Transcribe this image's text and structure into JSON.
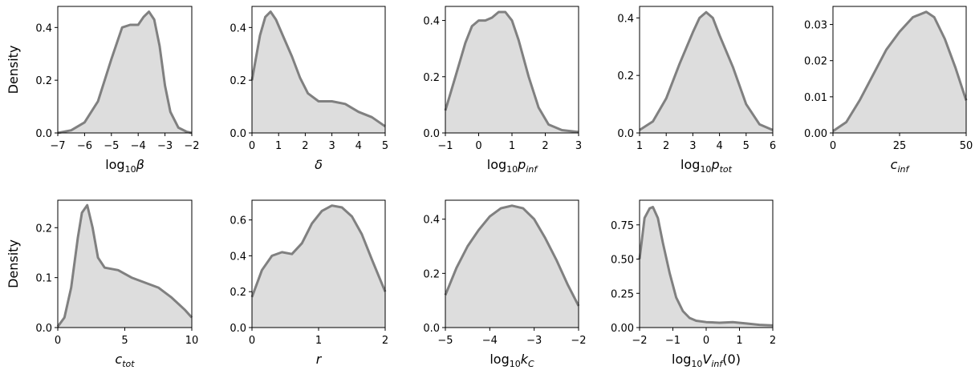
{
  "colors": {
    "fill": "#dddddd",
    "line": "#808080",
    "frame": "#000000"
  },
  "ylabel": "Density",
  "chart_data": [
    {
      "type": "area",
      "xlabel": {
        "base": "log",
        "sub": "10",
        "sym": "β",
        "ssub": ""
      },
      "xlim": [
        -7,
        -2
      ],
      "ylim": [
        0,
        0.48
      ],
      "xticks": [
        -7,
        -6,
        -5,
        -4,
        -3,
        -2
      ],
      "yticks": [
        0.0,
        0.2,
        0.4
      ],
      "xtick_labels": [
        "−7",
        "−6",
        "−5",
        "−4",
        "−3",
        "−2"
      ],
      "ytick_labels": [
        "0.0",
        "0.2",
        "0.4"
      ],
      "x": [
        -7,
        -6.5,
        -6,
        -5.5,
        -5,
        -4.6,
        -4.3,
        -4,
        -3.8,
        -3.6,
        -3.4,
        -3.2,
        -3,
        -2.8,
        -2.5,
        -2.2,
        -2
      ],
      "y": [
        0,
        0.01,
        0.04,
        0.12,
        0.28,
        0.4,
        0.41,
        0.41,
        0.44,
        0.46,
        0.43,
        0.33,
        0.18,
        0.08,
        0.02,
        0.005,
        0
      ]
    },
    {
      "type": "area",
      "xlabel": {
        "base": "",
        "sub": "",
        "sym": "δ",
        "ssub": ""
      },
      "xlim": [
        0,
        5
      ],
      "ylim": [
        0,
        0.48
      ],
      "xticks": [
        0,
        1,
        2,
        3,
        4,
        5
      ],
      "yticks": [
        0.0,
        0.2,
        0.4
      ],
      "xtick_labels": [
        "0",
        "1",
        "2",
        "3",
        "4",
        "5"
      ],
      "ytick_labels": [
        "0.0",
        "0.2",
        "0.4"
      ],
      "x": [
        0,
        0.3,
        0.5,
        0.7,
        0.9,
        1.2,
        1.5,
        1.8,
        2.1,
        2.5,
        3,
        3.5,
        4,
        4.5,
        5
      ],
      "y": [
        0.2,
        0.37,
        0.44,
        0.46,
        0.43,
        0.36,
        0.29,
        0.21,
        0.15,
        0.12,
        0.12,
        0.11,
        0.08,
        0.06,
        0.025
      ]
    },
    {
      "type": "area",
      "xlabel": {
        "base": "log",
        "sub": "10",
        "sym": "p",
        "ssub": "inf"
      },
      "xlim": [
        -1,
        3
      ],
      "ylim": [
        0,
        0.45
      ],
      "xticks": [
        -1,
        0,
        1,
        2,
        3
      ],
      "yticks": [
        0.0,
        0.2,
        0.4
      ],
      "xtick_labels": [
        "−1",
        "0",
        "1",
        "2",
        "3"
      ],
      "ytick_labels": [
        "0.0",
        "0.2",
        "0.4"
      ],
      "x": [
        -1,
        -0.7,
        -0.4,
        -0.2,
        0,
        0.2,
        0.4,
        0.6,
        0.8,
        1,
        1.2,
        1.5,
        1.8,
        2.1,
        2.5,
        3
      ],
      "y": [
        0.08,
        0.2,
        0.32,
        0.38,
        0.4,
        0.4,
        0.41,
        0.43,
        0.43,
        0.4,
        0.33,
        0.2,
        0.09,
        0.03,
        0.01,
        0.003
      ]
    },
    {
      "type": "area",
      "xlabel": {
        "base": "log",
        "sub": "10",
        "sym": "p",
        "ssub": "tot"
      },
      "xlim": [
        1,
        6
      ],
      "ylim": [
        0,
        0.44
      ],
      "xticks": [
        1,
        2,
        3,
        4,
        5,
        6
      ],
      "yticks": [
        0.0,
        0.2,
        0.4
      ],
      "xtick_labels": [
        "1",
        "2",
        "3",
        "4",
        "5",
        "6"
      ],
      "ytick_labels": [
        "0.0",
        "0.2",
        "0.4"
      ],
      "x": [
        1,
        1.5,
        2,
        2.5,
        3,
        3.25,
        3.5,
        3.75,
        4,
        4.5,
        5,
        5.5,
        6
      ],
      "y": [
        0.01,
        0.04,
        0.12,
        0.24,
        0.35,
        0.4,
        0.42,
        0.4,
        0.34,
        0.23,
        0.1,
        0.03,
        0.01
      ]
    },
    {
      "type": "area",
      "xlabel": {
        "base": "",
        "sub": "",
        "sym": "c",
        "ssub": "inf"
      },
      "xlim": [
        0,
        50
      ],
      "ylim": [
        0,
        0.035
      ],
      "xticks": [
        0,
        25,
        50
      ],
      "yticks": [
        0.0,
        0.01,
        0.02,
        0.03
      ],
      "xtick_labels": [
        "0",
        "25",
        "50"
      ],
      "ytick_labels": [
        "0.00",
        "0.01",
        "0.02",
        "0.03"
      ],
      "x": [
        0,
        5,
        10,
        15,
        20,
        25,
        30,
        35,
        38,
        42,
        46,
        50
      ],
      "y": [
        0.0005,
        0.003,
        0.009,
        0.016,
        0.023,
        0.028,
        0.032,
        0.0335,
        0.032,
        0.026,
        0.018,
        0.009
      ]
    },
    {
      "type": "area",
      "xlabel": {
        "base": "",
        "sub": "",
        "sym": "c",
        "ssub": "tot"
      },
      "xlim": [
        0,
        10
      ],
      "ylim": [
        0,
        0.255
      ],
      "xticks": [
        0,
        5,
        10
      ],
      "yticks": [
        0.0,
        0.1,
        0.2
      ],
      "xtick_labels": [
        "0",
        "5",
        "10"
      ],
      "ytick_labels": [
        "0.0",
        "0.1",
        "0.2"
      ],
      "x": [
        0,
        0.5,
        1,
        1.5,
        1.8,
        2.2,
        2.6,
        3,
        3.5,
        4.5,
        5.5,
        6.5,
        7.5,
        8.5,
        9.5,
        10
      ],
      "y": [
        0.002,
        0.02,
        0.08,
        0.18,
        0.23,
        0.245,
        0.2,
        0.14,
        0.12,
        0.115,
        0.1,
        0.09,
        0.08,
        0.06,
        0.035,
        0.02
      ]
    },
    {
      "type": "area",
      "xlabel": {
        "base": "",
        "sub": "",
        "sym": "r",
        "ssub": ""
      },
      "xlim": [
        0,
        2
      ],
      "ylim": [
        0,
        0.71
      ],
      "xticks": [
        0,
        1,
        2
      ],
      "yticks": [
        0.0,
        0.2,
        0.4,
        0.6
      ],
      "xtick_labels": [
        "0",
        "1",
        "2"
      ],
      "ytick_labels": [
        "0.0",
        "0.2",
        "0.4",
        "0.6"
      ],
      "x": [
        0,
        0.15,
        0.3,
        0.45,
        0.6,
        0.75,
        0.9,
        1.05,
        1.2,
        1.35,
        1.5,
        1.65,
        1.8,
        2
      ],
      "y": [
        0.17,
        0.32,
        0.4,
        0.42,
        0.41,
        0.47,
        0.58,
        0.65,
        0.68,
        0.67,
        0.62,
        0.52,
        0.38,
        0.2
      ]
    },
    {
      "type": "area",
      "xlabel": {
        "base": "log",
        "sub": "10",
        "sym": "k",
        "ssub": "C"
      },
      "xlim": [
        -5,
        -2
      ],
      "ylim": [
        0,
        0.47
      ],
      "xticks": [
        -5,
        -4,
        -3,
        -2
      ],
      "yticks": [
        0.0,
        0.2,
        0.4
      ],
      "xtick_labels": [
        "−5",
        "−4",
        "−3",
        "−2"
      ],
      "ytick_labels": [
        "0.0",
        "0.2",
        "0.4"
      ],
      "x": [
        -5,
        -4.75,
        -4.5,
        -4.25,
        -4,
        -3.75,
        -3.5,
        -3.25,
        -3,
        -2.75,
        -2.5,
        -2.25,
        -2
      ],
      "y": [
        0.12,
        0.22,
        0.3,
        0.36,
        0.41,
        0.44,
        0.45,
        0.44,
        0.4,
        0.33,
        0.25,
        0.16,
        0.08
      ]
    },
    {
      "type": "area",
      "xlabel": {
        "base": "log",
        "sub": "10",
        "sym": "V",
        "ssub": "inf",
        "tail": "(0)"
      },
      "xlim": [
        -2,
        2
      ],
      "ylim": [
        0,
        0.93
      ],
      "xticks": [
        -2,
        -1,
        0,
        1,
        2
      ],
      "yticks": [
        0.0,
        0.25,
        0.5,
        0.75
      ],
      "xtick_labels": [
        "−2",
        "−1",
        "0",
        "1",
        "2"
      ],
      "ytick_labels": [
        "0.00",
        "0.25",
        "0.50",
        "0.75"
      ],
      "x": [
        -2,
        -1.85,
        -1.7,
        -1.6,
        -1.45,
        -1.3,
        -1.1,
        -0.9,
        -0.7,
        -0.5,
        -0.3,
        0,
        0.4,
        0.8,
        1.2,
        1.6,
        2
      ],
      "y": [
        0.5,
        0.8,
        0.87,
        0.88,
        0.8,
        0.62,
        0.4,
        0.22,
        0.12,
        0.07,
        0.05,
        0.04,
        0.035,
        0.04,
        0.03,
        0.02,
        0.015
      ]
    }
  ]
}
